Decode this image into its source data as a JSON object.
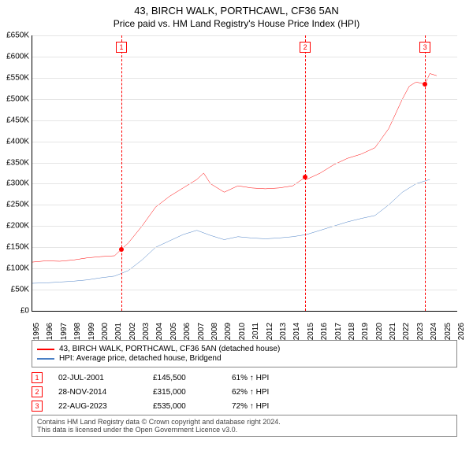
{
  "header": {
    "address": "43, BIRCH WALK, PORTHCAWL, CF36 5AN",
    "subtitle": "Price paid vs. HM Land Registry's House Price Index (HPI)"
  },
  "chart": {
    "type": "line",
    "xlim": [
      1995,
      2026
    ],
    "ylim": [
      0,
      650000
    ],
    "ytick_step": 50000,
    "ylabel_prefix": "£",
    "ylabel_suffix": "K",
    "xticks": [
      1995,
      1996,
      1997,
      1998,
      1999,
      2000,
      2001,
      2002,
      2003,
      2004,
      2005,
      2006,
      2007,
      2008,
      2009,
      2010,
      2011,
      2012,
      2013,
      2014,
      2015,
      2016,
      2017,
      2018,
      2019,
      2020,
      2021,
      2022,
      2023,
      2024,
      2025,
      2026
    ],
    "grid_color": "#e5e5e5",
    "marker_line_color": "#ff0000",
    "series": [
      {
        "name": "43, BIRCH WALK, PORTHCAWL, CF36 5AN (detached house)",
        "color": "#ff0000",
        "points": [
          [
            1995,
            115000
          ],
          [
            1996,
            118000
          ],
          [
            1997,
            117000
          ],
          [
            1998,
            120000
          ],
          [
            1999,
            125000
          ],
          [
            2000,
            128000
          ],
          [
            2001,
            130000
          ],
          [
            2001.5,
            145500
          ],
          [
            2002,
            160000
          ],
          [
            2003,
            200000
          ],
          [
            2004,
            245000
          ],
          [
            2005,
            270000
          ],
          [
            2006,
            290000
          ],
          [
            2007,
            310000
          ],
          [
            2007.5,
            325000
          ],
          [
            2008,
            300000
          ],
          [
            2009,
            280000
          ],
          [
            2010,
            295000
          ],
          [
            2011,
            290000
          ],
          [
            2012,
            288000
          ],
          [
            2013,
            290000
          ],
          [
            2014,
            295000
          ],
          [
            2014.9,
            315000
          ],
          [
            2015,
            310000
          ],
          [
            2016,
            325000
          ],
          [
            2017,
            345000
          ],
          [
            2018,
            360000
          ],
          [
            2019,
            370000
          ],
          [
            2020,
            385000
          ],
          [
            2021,
            430000
          ],
          [
            2022,
            500000
          ],
          [
            2022.5,
            530000
          ],
          [
            2023,
            540000
          ],
          [
            2023.65,
            535000
          ],
          [
            2024,
            560000
          ],
          [
            2024.5,
            555000
          ]
        ]
      },
      {
        "name": "HPI: Average price, detached house, Bridgend",
        "color": "#4a7fc5",
        "points": [
          [
            1995,
            65000
          ],
          [
            1996,
            66000
          ],
          [
            1997,
            68000
          ],
          [
            1998,
            70000
          ],
          [
            1999,
            73000
          ],
          [
            2000,
            78000
          ],
          [
            2001,
            82000
          ],
          [
            2002,
            95000
          ],
          [
            2003,
            120000
          ],
          [
            2004,
            150000
          ],
          [
            2005,
            165000
          ],
          [
            2006,
            180000
          ],
          [
            2007,
            190000
          ],
          [
            2008,
            178000
          ],
          [
            2009,
            168000
          ],
          [
            2010,
            175000
          ],
          [
            2011,
            172000
          ],
          [
            2012,
            170000
          ],
          [
            2013,
            172000
          ],
          [
            2014,
            175000
          ],
          [
            2015,
            180000
          ],
          [
            2016,
            190000
          ],
          [
            2017,
            200000
          ],
          [
            2018,
            210000
          ],
          [
            2019,
            218000
          ],
          [
            2020,
            225000
          ],
          [
            2021,
            250000
          ],
          [
            2022,
            280000
          ],
          [
            2023,
            300000
          ],
          [
            2024,
            310000
          ]
        ]
      }
    ],
    "transactions": [
      {
        "n": "1",
        "year": 2001.5,
        "price": 145500,
        "date": "02-JUL-2001",
        "price_str": "£145,500",
        "pct": "61% ↑ HPI"
      },
      {
        "n": "2",
        "year": 2014.91,
        "price": 315000,
        "date": "28-NOV-2014",
        "price_str": "£315,000",
        "pct": "62% ↑ HPI"
      },
      {
        "n": "3",
        "year": 2023.65,
        "price": 535000,
        "date": "22-AUG-2023",
        "price_str": "£535,000",
        "pct": "72% ↑ HPI"
      }
    ]
  },
  "footer": {
    "line1": "Contains HM Land Registry data © Crown copyright and database right 2024.",
    "line2": "This data is licensed under the Open Government Licence v3.0."
  }
}
